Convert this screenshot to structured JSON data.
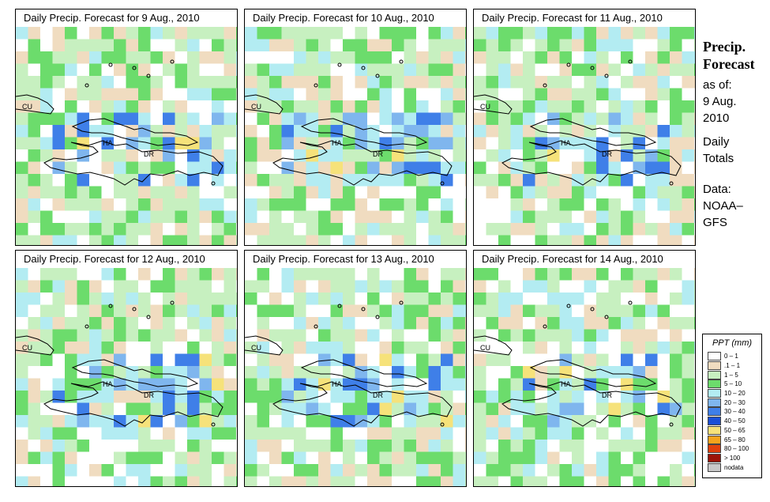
{
  "panels": [
    {
      "title": "Daily Precip. Forecast for  9 Aug., 2010",
      "seed": 11,
      "wet": 0.35
    },
    {
      "title": "Daily Precip. Forecast for  10 Aug., 2010",
      "seed": 23,
      "wet": 0.55
    },
    {
      "title": "Daily Precip. Forecast for  11 Aug., 2010",
      "seed": 37,
      "wet": 0.4
    },
    {
      "title": "Daily Precip. Forecast for  12 Aug., 2010",
      "seed": 41,
      "wet": 0.45
    },
    {
      "title": "Daily Precip. Forecast for  13 Aug., 2010",
      "seed": 53,
      "wet": 0.5
    },
    {
      "title": "Daily Precip. Forecast for  14 Aug., 2010",
      "seed": 67,
      "wet": 0.3
    }
  ],
  "map_labels": {
    "cuba": "CU",
    "haiti": "HA",
    "dominican_republic": "DR"
  },
  "sidebar": {
    "title_line1": "Precip.",
    "title_line2": "Forecast",
    "as_of": "as of:",
    "date_line1": "9 Aug.",
    "date_line2": "2010",
    "totals_line1": "Daily",
    "totals_line2": "Totals",
    "data_line1": "Data:",
    "data_line2": "NOAA–",
    "data_line3": "GFS"
  },
  "legend": {
    "title": "PPT (mm)",
    "entries": [
      {
        "label": "0 – 1",
        "color": "#ffffff"
      },
      {
        "label": ".1 – 1",
        "color": "#f0dcc0"
      },
      {
        "label": "1 – 5",
        "color": "#c7f0c0"
      },
      {
        "label": "5 – 10",
        "color": "#6cdc6c"
      },
      {
        "label": "10 – 20",
        "color": "#b3ecf2"
      },
      {
        "label": "20 – 30",
        "color": "#7fb6ee"
      },
      {
        "label": "30 – 40",
        "color": "#3f7fe8"
      },
      {
        "label": "40 – 50",
        "color": "#1a4fd6"
      },
      {
        "label": "50 – 65",
        "color": "#f6e27a"
      },
      {
        "label": "65 – 80",
        "color": "#f4a31c"
      },
      {
        "label": "80 – 100",
        "color": "#e0400c"
      },
      {
        "label": "> 100",
        "color": "#9c1408"
      },
      {
        "label": "nodata",
        "color": "#c8c8c8"
      }
    ]
  }
}
